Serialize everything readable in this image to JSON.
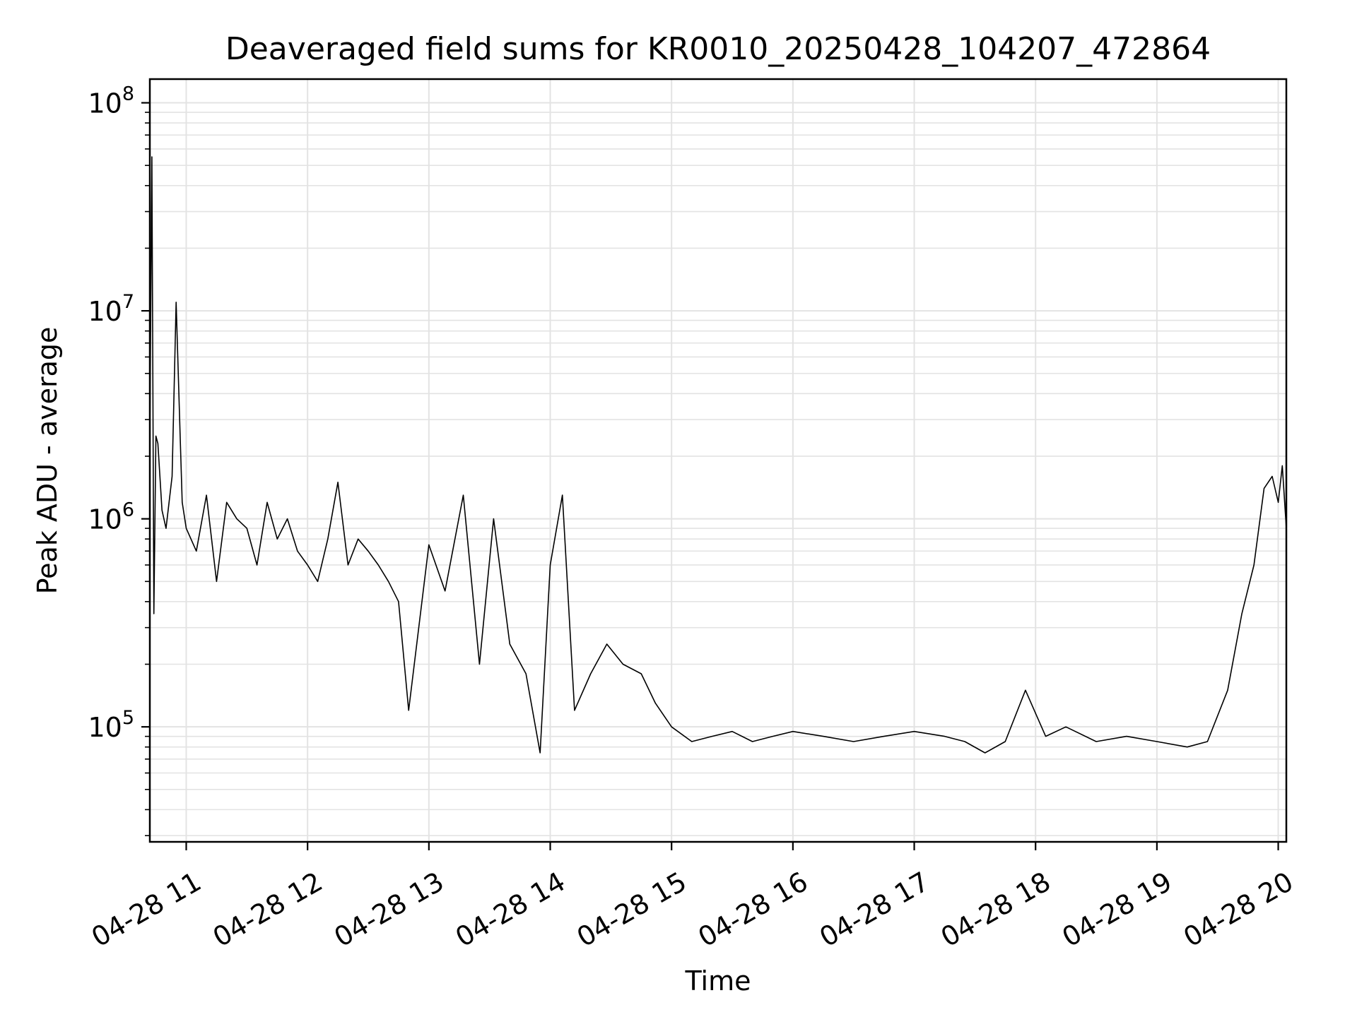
{
  "chart_data": {
    "type": "line",
    "title": "Deaveraged field sums for KR0010_20250428_104207_472864",
    "xlabel": "Time",
    "ylabel": "Peak ADU - average",
    "y_scale": "log",
    "grid": true,
    "ylim": [
      28000,
      130000000
    ],
    "xlim": [
      "2025-04-28T10:42",
      "2025-04-28T20:04"
    ],
    "x_ticks": [
      {
        "value": "2025-04-28T11:00",
        "label": "04-28 11"
      },
      {
        "value": "2025-04-28T12:00",
        "label": "04-28 12"
      },
      {
        "value": "2025-04-28T13:00",
        "label": "04-28 13"
      },
      {
        "value": "2025-04-28T14:00",
        "label": "04-28 14"
      },
      {
        "value": "2025-04-28T15:00",
        "label": "04-28 15"
      },
      {
        "value": "2025-04-28T16:00",
        "label": "04-28 16"
      },
      {
        "value": "2025-04-28T17:00",
        "label": "04-28 17"
      },
      {
        "value": "2025-04-28T18:00",
        "label": "04-28 18"
      },
      {
        "value": "2025-04-28T19:00",
        "label": "04-28 19"
      },
      {
        "value": "2025-04-28T20:00",
        "label": "04-28 20"
      }
    ],
    "y_ticks": [
      {
        "value": 100000,
        "base": "10",
        "exp": "5"
      },
      {
        "value": 1000000,
        "base": "10",
        "exp": "6"
      },
      {
        "value": 10000000,
        "base": "10",
        "exp": "7"
      },
      {
        "value": 100000000,
        "base": "10",
        "exp": "8"
      }
    ],
    "line_color": "#000000",
    "series": [
      {
        "x": [
          "2025-04-28T10:42",
          "2025-04-28T10:43",
          "2025-04-28T10:44",
          "2025-04-28T10:45",
          "2025-04-28T10:46",
          "2025-04-28T10:48",
          "2025-04-28T10:50",
          "2025-04-28T10:53",
          "2025-04-28T10:55",
          "2025-04-28T10:57",
          "2025-04-28T10:58",
          "2025-04-28T11:00",
          "2025-04-28T11:05",
          "2025-04-28T11:10",
          "2025-04-28T11:15",
          "2025-04-28T11:20",
          "2025-04-28T11:25",
          "2025-04-28T11:30",
          "2025-04-28T11:35",
          "2025-04-28T11:40",
          "2025-04-28T11:45",
          "2025-04-28T11:50",
          "2025-04-28T11:55",
          "2025-04-28T12:00",
          "2025-04-28T12:05",
          "2025-04-28T12:10",
          "2025-04-28T12:15",
          "2025-04-28T12:20",
          "2025-04-28T12:25",
          "2025-04-28T12:30",
          "2025-04-28T12:35",
          "2025-04-28T12:40",
          "2025-04-28T12:45",
          "2025-04-28T12:50",
          "2025-04-28T13:00",
          "2025-04-28T13:08",
          "2025-04-28T13:17",
          "2025-04-28T13:25",
          "2025-04-28T13:32",
          "2025-04-28T13:40",
          "2025-04-28T13:48",
          "2025-04-28T13:55",
          "2025-04-28T14:00",
          "2025-04-28T14:06",
          "2025-04-28T14:12",
          "2025-04-28T14:20",
          "2025-04-28T14:28",
          "2025-04-28T14:36",
          "2025-04-28T14:45",
          "2025-04-28T14:52",
          "2025-04-28T15:00",
          "2025-04-28T15:10",
          "2025-04-28T15:20",
          "2025-04-28T15:30",
          "2025-04-28T15:40",
          "2025-04-28T15:50",
          "2025-04-28T16:00",
          "2025-04-28T16:15",
          "2025-04-28T16:30",
          "2025-04-28T16:45",
          "2025-04-28T17:00",
          "2025-04-28T17:15",
          "2025-04-28T17:25",
          "2025-04-28T17:35",
          "2025-04-28T17:45",
          "2025-04-28T17:55",
          "2025-04-28T18:05",
          "2025-04-28T18:15",
          "2025-04-28T18:30",
          "2025-04-28T18:45",
          "2025-04-28T19:00",
          "2025-04-28T19:15",
          "2025-04-28T19:25",
          "2025-04-28T19:35",
          "2025-04-28T19:42",
          "2025-04-28T19:48",
          "2025-04-28T19:53",
          "2025-04-28T19:57",
          "2025-04-28T20:00",
          "2025-04-28T20:02",
          "2025-04-28T20:04"
        ],
        "y": [
          2500000,
          55000000,
          350000,
          2500000,
          2300000,
          1100000,
          900000,
          1600000,
          11000000,
          2500000,
          1200000,
          900000,
          700000,
          1300000,
          500000,
          1200000,
          1000000,
          900000,
          600000,
          1200000,
          800000,
          1000000,
          700000,
          600000,
          500000,
          800000,
          1500000,
          600000,
          800000,
          700000,
          600000,
          500000,
          400000,
          120000,
          750000,
          450000,
          1300000,
          200000,
          1000000,
          250000,
          180000,
          75000,
          600000,
          1300000,
          120000,
          180000,
          250000,
          200000,
          180000,
          130000,
          100000,
          85000,
          90000,
          95000,
          85000,
          90000,
          95000,
          90000,
          85000,
          90000,
          95000,
          90000,
          85000,
          75000,
          85000,
          150000,
          90000,
          100000,
          85000,
          90000,
          85000,
          80000,
          85000,
          150000,
          350000,
          600000,
          1400000,
          1600000,
          1200000,
          1800000,
          900000
        ]
      }
    ]
  }
}
